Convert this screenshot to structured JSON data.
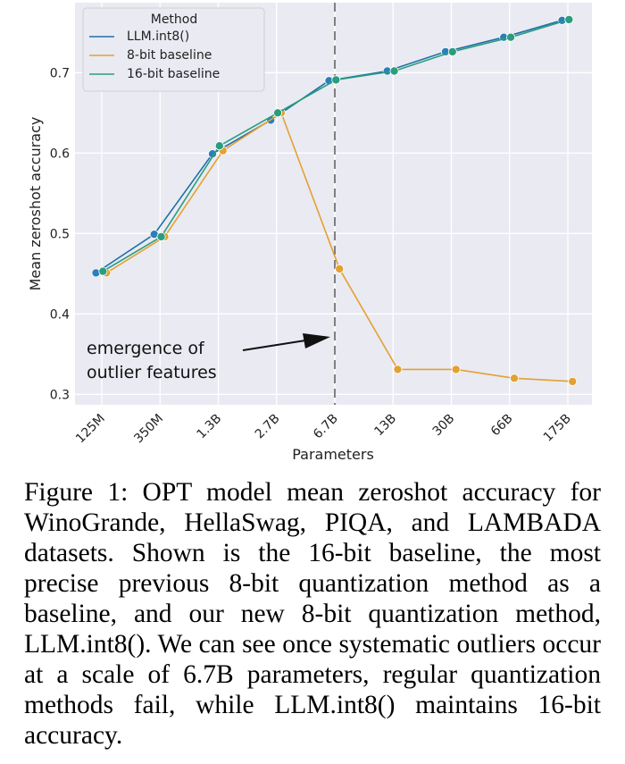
{
  "chart_data": {
    "type": "line",
    "xlabel": "Parameters",
    "ylabel": "Mean zeroshot accuracy",
    "categories": [
      "125M",
      "350M",
      "1.3B",
      "2.7B",
      "6.7B",
      "13B",
      "30B",
      "66B",
      "175B"
    ],
    "yticks": [
      "0.3",
      "0.4",
      "0.5",
      "0.6",
      "0.7"
    ],
    "ylim": [
      0.287,
      0.787
    ],
    "grid": true,
    "legend": {
      "title": "Method",
      "placement": "top-left"
    },
    "series": [
      {
        "name": "LLM.int8()",
        "color": "#1f6fa8",
        "marker": "#2a7fba",
        "offset": -0.1,
        "values": [
          0.451,
          0.499,
          0.599,
          0.641,
          0.69,
          0.702,
          0.726,
          0.744,
          0.765
        ]
      },
      {
        "name": "8-bit baseline",
        "color": "#e3a132",
        "marker": "#e3a132",
        "offset": 0.08,
        "values": [
          0.451,
          0.496,
          0.603,
          0.65,
          0.456,
          0.331,
          0.331,
          0.32,
          0.316
        ]
      },
      {
        "name": "16-bit baseline",
        "color": "#2a9d7e",
        "marker": "#2a9d7e",
        "offset": 0.02,
        "values": [
          0.453,
          0.496,
          0.609,
          0.65,
          0.691,
          0.702,
          0.726,
          0.744,
          0.766
        ]
      }
    ],
    "annotation": {
      "lines": [
        "emergence of",
        "outlier features"
      ],
      "category_index": 4
    }
  },
  "caption": "Figure 1: OPT model mean zeroshot accuracy for WinoGrande, HellaSwag, PIQA, and LAMBADA datasets. Shown is the 16-bit baseline, the most precise previous 8-bit quantization method as a baseline, and our new 8-bit quantization method, LLM.int8(). We can see once systematic outliers occur at a scale of 6.7B parameters, regular quantization methods fail, while LLM.int8() maintains 16-bit accuracy."
}
